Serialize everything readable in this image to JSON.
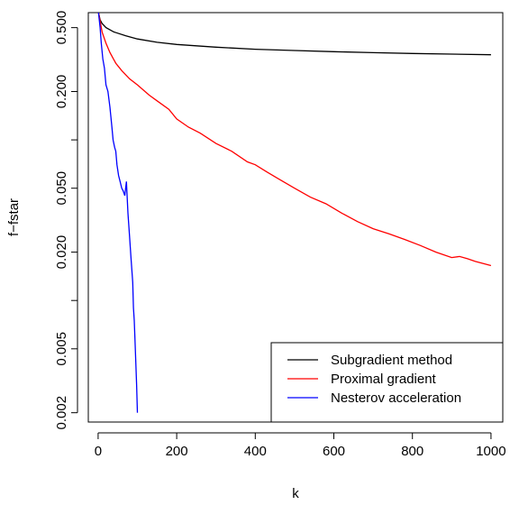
{
  "chart_data": {
    "type": "line",
    "title": "",
    "xlabel": "k",
    "ylabel": "f−fstar",
    "xlim": [
      -25,
      1030
    ],
    "ylim": [
      0.00175,
      0.62
    ],
    "ylog": true,
    "grid": false,
    "legend_position": "bottom-right",
    "x_ticks": [
      0,
      200,
      400,
      600,
      800,
      1000
    ],
    "x_tick_labels": [
      "0",
      "200",
      "400",
      "600",
      "800",
      "1000"
    ],
    "y_ticks": [
      0.002,
      0.005,
      0.01,
      0.02,
      0.05,
      0.1,
      0.2,
      0.5
    ],
    "y_tick_labels": [
      "0.002",
      "0.005",
      "",
      "0.020",
      "0.050",
      "",
      "0.200",
      "0.500"
    ],
    "series": [
      {
        "name": "Subgradient method",
        "color": "#000000",
        "x": [
          1,
          5,
          10,
          20,
          40,
          70,
          100,
          150,
          200,
          300,
          400,
          500,
          600,
          700,
          800,
          900,
          1000
        ],
        "y": [
          0.62,
          0.56,
          0.53,
          0.5,
          0.47,
          0.445,
          0.425,
          0.405,
          0.393,
          0.378,
          0.367,
          0.36,
          0.354,
          0.349,
          0.345,
          0.342,
          0.339
        ]
      },
      {
        "name": "Proximal gradient",
        "color": "#ff0000",
        "x": [
          1,
          5,
          10,
          20,
          30,
          45,
          60,
          80,
          100,
          130,
          150,
          180,
          200,
          230,
          260,
          300,
          340,
          380,
          400,
          430,
          460,
          500,
          540,
          580,
          620,
          660,
          700,
          740,
          780,
          820,
          860,
          900,
          920,
          940,
          960,
          1000
        ],
        "y": [
          0.62,
          0.55,
          0.47,
          0.4,
          0.35,
          0.3,
          0.27,
          0.24,
          0.22,
          0.19,
          0.175,
          0.155,
          0.135,
          0.12,
          0.11,
          0.095,
          0.085,
          0.073,
          0.07,
          0.063,
          0.057,
          0.05,
          0.044,
          0.04,
          0.035,
          0.031,
          0.028,
          0.026,
          0.024,
          0.022,
          0.02,
          0.0185,
          0.0188,
          0.0182,
          0.0175,
          0.0165
        ]
      },
      {
        "name": "Nesterov acceleration",
        "color": "#0000ff",
        "x": [
          1,
          5,
          8,
          12,
          16,
          20,
          25,
          30,
          35,
          38,
          42,
          45,
          48,
          52,
          56,
          60,
          64,
          68,
          72,
          76,
          80,
          84,
          88,
          90,
          92,
          94,
          96,
          98,
          100
        ],
        "y": [
          0.62,
          0.5,
          0.4,
          0.32,
          0.28,
          0.22,
          0.2,
          0.16,
          0.12,
          0.1,
          0.09,
          0.085,
          0.07,
          0.06,
          0.055,
          0.05,
          0.048,
          0.045,
          0.055,
          0.035,
          0.025,
          0.018,
          0.013,
          0.009,
          0.0075,
          0.0055,
          0.004,
          0.003,
          0.002
        ]
      }
    ]
  }
}
